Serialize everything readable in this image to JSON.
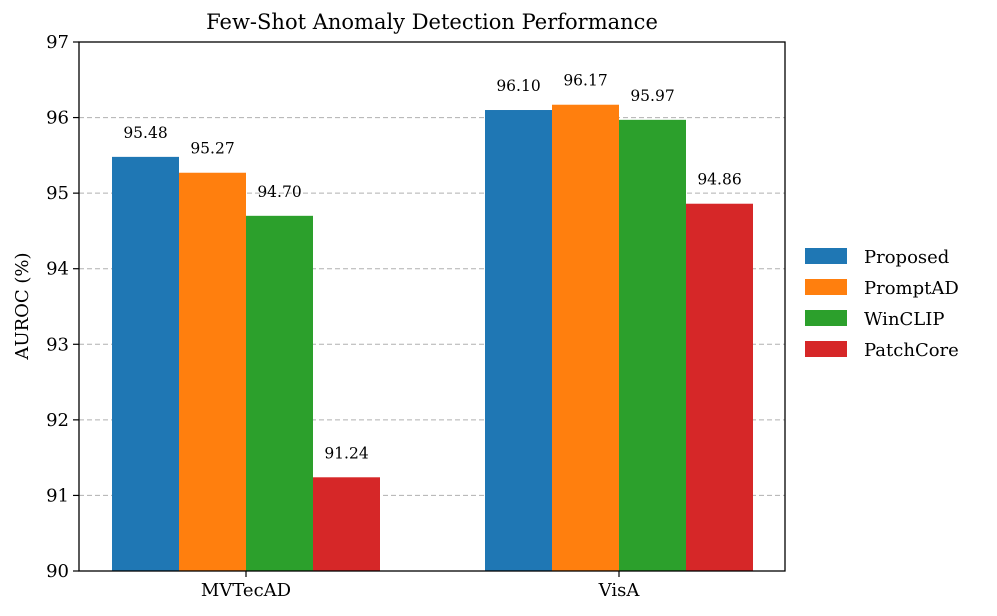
{
  "chart_data": {
    "type": "bar",
    "title": "Few-Shot Anomaly Detection Performance",
    "xlabel": "",
    "ylabel": "AUROC (%)",
    "ylim": [
      90,
      97
    ],
    "yticks": [
      90,
      91,
      92,
      93,
      94,
      95,
      96,
      97
    ],
    "grid": "y-dashed",
    "legend_position": "right",
    "categories": [
      "MVTecAD",
      "VisA"
    ],
    "series": [
      {
        "name": "Proposed",
        "color": "#1f77b4",
        "values": [
          95.48,
          96.1
        ],
        "labels": [
          "95.48",
          "96.10"
        ]
      },
      {
        "name": "PromptAD",
        "color": "#ff7f0e",
        "values": [
          95.27,
          96.17
        ],
        "labels": [
          "95.27",
          "96.17"
        ]
      },
      {
        "name": "WinCLIP",
        "color": "#2ca02c",
        "values": [
          94.7,
          95.97
        ],
        "labels": [
          "94.70",
          "95.97"
        ]
      },
      {
        "name": "PatchCore",
        "color": "#d62728",
        "values": [
          91.24,
          94.86
        ],
        "labels": [
          "91.24",
          "94.86"
        ]
      }
    ]
  }
}
